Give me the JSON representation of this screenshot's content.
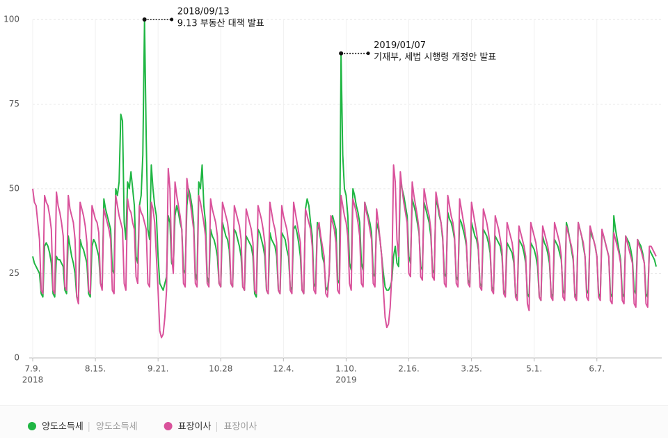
{
  "chart_data": {
    "type": "line",
    "categories": [
      "7.9.",
      null,
      null,
      null,
      null,
      null,
      null,
      null,
      null,
      null,
      null,
      null,
      null,
      null,
      null,
      null,
      null,
      null,
      null,
      null,
      null,
      null,
      null,
      null,
      null,
      null,
      null,
      null,
      null,
      null,
      null,
      null,
      null,
      null,
      null,
      null,
      null,
      "8.15.",
      null,
      null,
      null,
      null,
      null,
      null,
      null,
      null,
      null,
      null,
      null,
      null,
      null,
      null,
      null,
      null,
      null,
      null,
      null,
      null,
      null,
      null,
      null,
      null,
      null,
      null,
      null,
      null,
      null,
      null,
      null,
      null,
      null,
      null,
      null,
      null,
      "9.21.",
      null,
      null,
      null,
      null,
      null,
      null,
      null,
      null,
      null,
      null,
      null,
      null,
      null,
      null,
      null,
      null,
      null,
      null,
      null,
      null,
      null,
      null,
      null,
      null,
      null,
      null,
      null,
      null,
      null,
      null,
      null,
      null,
      null,
      null,
      null,
      null,
      "10.28",
      null,
      null,
      null,
      null,
      null,
      null,
      null,
      null,
      null,
      null,
      null,
      null,
      null,
      null,
      null,
      null,
      null,
      null,
      null,
      null,
      null,
      null,
      null,
      null,
      null,
      null,
      null,
      null,
      null,
      null,
      null,
      null,
      null,
      null,
      null,
      null,
      "12.4.",
      null,
      null,
      null,
      null,
      null,
      null,
      null,
      null,
      null,
      null,
      null,
      null,
      null,
      null,
      null,
      null,
      null,
      null,
      null,
      null,
      null,
      null,
      null,
      null,
      null,
      null,
      null,
      null,
      null,
      null,
      null,
      null,
      null,
      null,
      null,
      null,
      "1.10.",
      null,
      null,
      null,
      null,
      null,
      null,
      null,
      null,
      null,
      null,
      null,
      null,
      null,
      null,
      null,
      null,
      null,
      null,
      null,
      null,
      null,
      null,
      null,
      null,
      null,
      null,
      null,
      null,
      null,
      null,
      null,
      null,
      null,
      null,
      null,
      null,
      "2.16.",
      null,
      null,
      null,
      null,
      null,
      null,
      null,
      null,
      null,
      null,
      null,
      null,
      null,
      null,
      null,
      null,
      null,
      null,
      null,
      null,
      null,
      null,
      null,
      null,
      null,
      null,
      null,
      null,
      null,
      null,
      null,
      null,
      null,
      null,
      null,
      null,
      "3.25.",
      null,
      null,
      null,
      null,
      null,
      null,
      null,
      null,
      null,
      null,
      null,
      null,
      null,
      null,
      null,
      null,
      null,
      null,
      null,
      null,
      null,
      null,
      null,
      null,
      null,
      null,
      null,
      null,
      null,
      null,
      null,
      null,
      null,
      null,
      null,
      null,
      "5.1.",
      null,
      null,
      null,
      null,
      null,
      null,
      null,
      null,
      null,
      null,
      null,
      null,
      null,
      null,
      null,
      null,
      null,
      null,
      null,
      null,
      null,
      null,
      null,
      null,
      null,
      null,
      null,
      null,
      null,
      null,
      null,
      null,
      null,
      null,
      null,
      null,
      "6.7.",
      null,
      null,
      null,
      null,
      null,
      null,
      null,
      null,
      null,
      null,
      null,
      null,
      null,
      null,
      null,
      null,
      null,
      null,
      null,
      null,
      null,
      null,
      null,
      null,
      null,
      null,
      null,
      null,
      null,
      null,
      null,
      null,
      null,
      null,
      null
    ],
    "year_labels": [
      {
        "at": "7.9.",
        "label": "2018"
      },
      {
        "at": "1.10.",
        "label": "2019"
      }
    ],
    "series": [
      {
        "name": "양도소득세",
        "color": "#1fb643",
        "values": [
          30,
          28,
          27,
          26,
          25,
          19,
          18,
          33,
          34,
          33,
          31,
          28,
          19,
          18,
          30,
          29,
          29,
          28,
          27,
          20,
          19,
          36,
          33,
          30,
          28,
          25,
          18,
          17,
          35,
          33,
          32,
          30,
          28,
          19,
          18,
          33,
          35,
          34,
          32,
          30,
          22,
          21,
          47,
          44,
          42,
          40,
          38,
          26,
          25,
          50,
          48,
          52,
          72,
          70,
          40,
          35,
          52,
          50,
          55,
          50,
          45,
          30,
          28,
          45,
          48,
          60,
          100,
          65,
          38,
          35,
          57,
          50,
          45,
          42,
          30,
          22,
          21,
          20,
          22,
          24,
          42,
          40,
          28,
          27,
          42,
          45,
          43,
          40,
          38,
          26,
          25,
          45,
          50,
          48,
          45,
          40,
          25,
          23,
          52,
          50,
          57,
          45,
          40,
          24,
          22,
          38,
          36,
          35,
          33,
          30,
          22,
          21,
          40,
          38,
          36,
          35,
          32,
          22,
          21,
          38,
          37,
          35,
          33,
          30,
          21,
          20,
          36,
          35,
          34,
          33,
          30,
          19,
          18,
          38,
          37,
          35,
          33,
          30,
          20,
          19,
          37,
          35,
          34,
          33,
          30,
          20,
          19,
          37,
          36,
          35,
          32,
          30,
          21,
          20,
          38,
          39,
          37,
          34,
          30,
          20,
          19,
          44,
          47,
          45,
          40,
          36,
          22,
          21,
          40,
          38,
          35,
          30,
          28,
          21,
          20,
          25,
          40,
          42,
          40,
          38,
          23,
          22,
          90,
          60,
          50,
          48,
          42,
          28,
          26,
          50,
          48,
          45,
          43,
          40,
          28,
          26,
          46,
          44,
          42,
          40,
          37,
          25,
          24,
          40,
          38,
          35,
          30,
          25,
          21,
          20,
          20,
          21,
          23,
          30,
          33,
          28,
          27,
          52,
          50,
          48,
          45,
          42,
          30,
          28,
          47,
          45,
          43,
          40,
          37,
          27,
          26,
          46,
          44,
          42,
          40,
          36,
          26,
          25,
          47,
          45,
          42,
          40,
          35,
          25,
          24,
          43,
          41,
          40,
          38,
          35,
          24,
          23,
          41,
          40,
          38,
          36,
          33,
          23,
          22,
          40,
          38,
          36,
          35,
          32,
          22,
          21,
          38,
          37,
          36,
          34,
          31,
          21,
          20,
          36,
          35,
          34,
          33,
          30,
          20,
          19,
          34,
          33,
          32,
          31,
          28,
          19,
          18,
          35,
          34,
          33,
          31,
          28,
          19,
          18,
          34,
          33,
          32,
          30,
          27,
          18,
          17,
          36,
          34,
          33,
          31,
          28,
          19,
          18,
          35,
          34,
          33,
          31,
          29,
          20,
          19,
          40,
          38,
          35,
          32,
          29,
          19,
          18,
          40,
          38,
          36,
          33,
          30,
          20,
          19,
          38,
          36,
          35,
          33,
          30,
          19,
          18,
          37,
          36,
          34,
          32,
          30,
          19,
          18,
          42,
          38,
          35,
          32,
          29,
          19,
          18,
          36,
          35,
          34,
          32,
          29,
          20,
          19,
          35,
          34,
          33,
          31,
          28,
          19,
          18,
          32,
          31,
          30,
          29,
          27
        ]
      },
      {
        "name": "표장이사",
        "color": "#d9529b",
        "values": [
          50,
          46,
          45,
          40,
          35,
          20,
          19,
          48,
          46,
          45,
          42,
          38,
          20,
          19,
          49,
          45,
          43,
          40,
          36,
          21,
          20,
          48,
          44,
          42,
          40,
          35,
          18,
          16,
          46,
          44,
          42,
          39,
          34,
          20,
          19,
          45,
          43,
          41,
          40,
          37,
          22,
          20,
          44,
          42,
          40,
          38,
          35,
          20,
          19,
          48,
          45,
          42,
          40,
          38,
          22,
          20,
          47,
          44,
          43,
          40,
          38,
          24,
          22,
          45,
          43,
          42,
          40,
          38,
          22,
          21,
          46,
          44,
          40,
          30,
          20,
          8,
          6,
          7,
          12,
          20,
          56,
          50,
          30,
          25,
          52,
          48,
          45,
          42,
          38,
          22,
          21,
          53,
          49,
          46,
          42,
          38,
          22,
          21,
          48,
          46,
          43,
          40,
          36,
          22,
          21,
          47,
          44,
          42,
          40,
          36,
          22,
          21,
          46,
          44,
          42,
          40,
          36,
          22,
          21,
          45,
          43,
          41,
          39,
          35,
          21,
          20,
          44,
          42,
          40,
          38,
          34,
          20,
          19,
          45,
          43,
          41,
          38,
          34,
          20,
          19,
          46,
          43,
          40,
          38,
          34,
          20,
          19,
          45,
          42,
          40,
          38,
          34,
          20,
          19,
          46,
          43,
          40,
          37,
          34,
          20,
          19,
          44,
          42,
          40,
          38,
          33,
          20,
          19,
          38,
          40,
          36,
          33,
          30,
          19,
          18,
          25,
          42,
          40,
          38,
          34,
          20,
          19,
          48,
          45,
          42,
          40,
          36,
          22,
          20,
          47,
          45,
          43,
          40,
          36,
          22,
          21,
          46,
          43,
          41,
          38,
          35,
          22,
          21,
          44,
          40,
          35,
          30,
          20,
          12,
          9,
          10,
          15,
          25,
          57,
          52,
          35,
          30,
          55,
          50,
          46,
          43,
          40,
          25,
          24,
          52,
          48,
          45,
          42,
          38,
          24,
          23,
          50,
          47,
          44,
          42,
          38,
          24,
          23,
          49,
          46,
          43,
          40,
          36,
          22,
          21,
          48,
          45,
          42,
          40,
          36,
          22,
          21,
          47,
          44,
          41,
          38,
          34,
          22,
          21,
          46,
          43,
          40,
          37,
          33,
          21,
          20,
          44,
          42,
          40,
          37,
          33,
          20,
          19,
          42,
          40,
          38,
          35,
          32,
          19,
          18,
          40,
          38,
          36,
          34,
          30,
          18,
          17,
          39,
          37,
          35,
          33,
          30,
          16,
          14,
          40,
          38,
          36,
          34,
          30,
          18,
          17,
          39,
          37,
          35,
          33,
          30,
          18,
          17,
          40,
          38,
          36,
          34,
          30,
          18,
          17,
          39,
          37,
          35,
          33,
          30,
          18,
          17,
          40,
          38,
          36,
          34,
          30,
          18,
          17,
          39,
          37,
          35,
          33,
          30,
          18,
          17,
          38,
          36,
          34,
          32,
          30,
          17,
          16,
          37,
          35,
          33,
          31,
          28,
          17,
          16,
          36,
          34,
          32,
          30,
          28,
          16,
          15,
          35,
          33,
          32,
          30,
          28,
          16,
          15,
          33,
          33,
          32,
          31,
          30
        ]
      }
    ],
    "ylim": [
      0,
      100
    ],
    "yticks": [
      0,
      25,
      50,
      75,
      100
    ],
    "grid": true,
    "annotations": [
      {
        "date": "2018/09/13",
        "text": "9.13 부동산 대책 발표"
      },
      {
        "date": "2019/01/07",
        "text": "기재부, 세법 시행령 개정안 발표"
      }
    ],
    "legend_position": "bottom"
  }
}
